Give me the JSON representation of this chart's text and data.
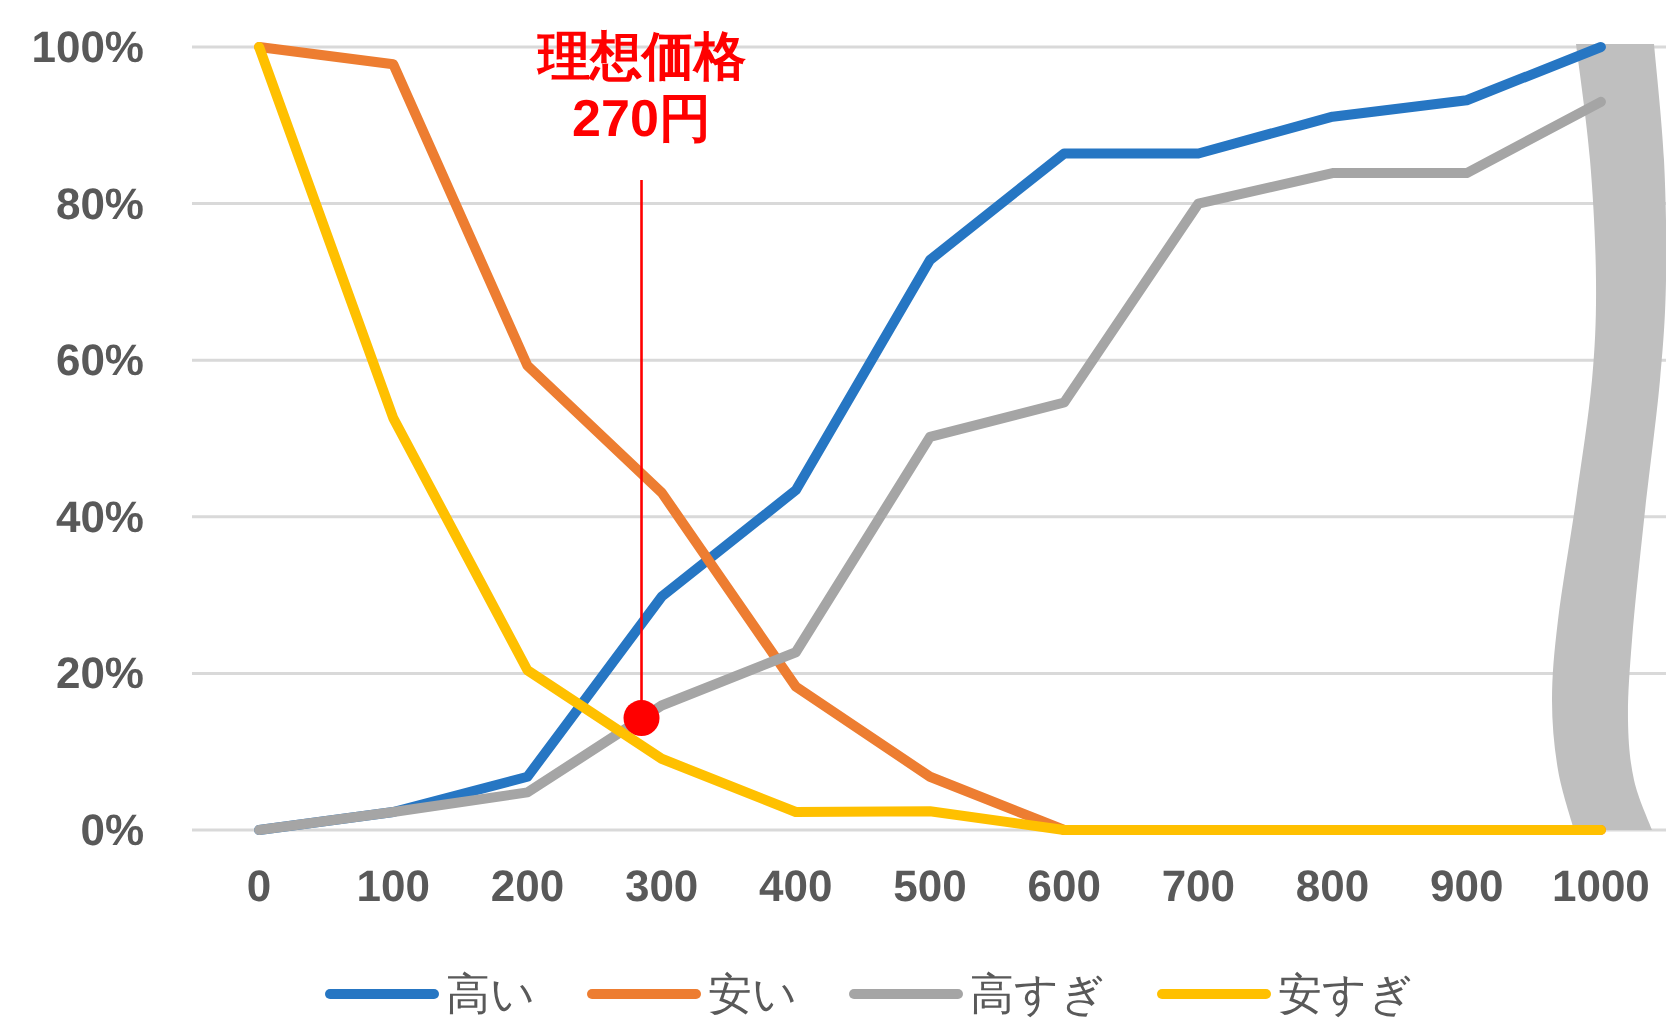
{
  "chart_data": {
    "type": "line",
    "x": [
      0,
      100,
      200,
      300,
      400,
      500,
      600,
      700,
      800,
      900,
      1000
    ],
    "xlim": [
      -50,
      1050
    ],
    "xticks": [
      0,
      100,
      200,
      300,
      400,
      500,
      600,
      700,
      800,
      900,
      1000
    ],
    "ylim": [
      0,
      100
    ],
    "yticks": [
      {
        "value": 0,
        "label": "0%"
      },
      {
        "value": 20,
        "label": "20%"
      },
      {
        "value": 40,
        "label": "40%"
      },
      {
        "value": 60,
        "label": "60%"
      },
      {
        "value": 80,
        "label": "80%"
      },
      {
        "value": 100,
        "label": "100%"
      }
    ],
    "grid": "y",
    "legend": "bottom",
    "series": [
      {
        "name": "高い",
        "color": "#2676c3",
        "values": [
          0,
          2.3,
          6.8,
          29.8,
          43.4,
          72.8,
          86.4,
          86.4,
          91.1,
          93.2,
          100
        ]
      },
      {
        "name": "安い",
        "color": "#ed7d31",
        "values": [
          100,
          97.8,
          59.3,
          43.1,
          18.3,
          6.8,
          0,
          0,
          0,
          0,
          0
        ]
      },
      {
        "name": "高すぎ",
        "color": "#a5a5a5",
        "values": [
          0,
          2.3,
          4.8,
          15.9,
          22.7,
          50.2,
          54.6,
          80.0,
          83.9,
          83.9,
          93.0
        ]
      },
      {
        "name": "安すぎ",
        "color": "#ffc000",
        "values": [
          100,
          52.6,
          20.4,
          9.1,
          2.3,
          2.4,
          0,
          0,
          0,
          0,
          0
        ]
      }
    ],
    "annotations": [
      {
        "text": "理想価格\n270円",
        "x": 285,
        "y": 14.3
      }
    ]
  }
}
